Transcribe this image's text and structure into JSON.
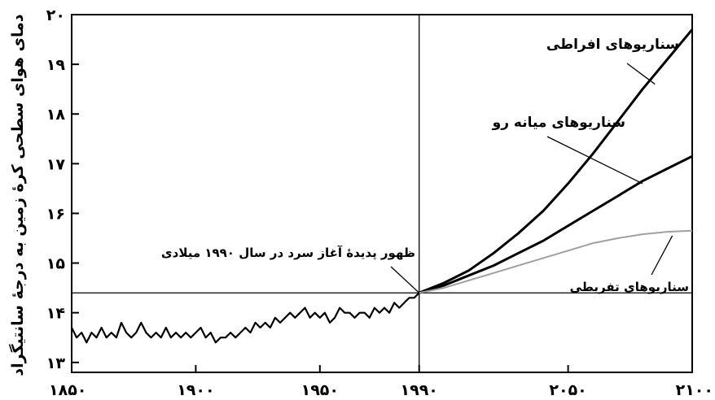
{
  "chart_data": {
    "type": "line",
    "title": "",
    "xlabel": "",
    "ylabel": "دمای هوای سطحی کرهٔ زمین به درجهٔ سانتیگراد",
    "xlim": [
      1850,
      2100
    ],
    "ylim": [
      12.8,
      20
    ],
    "x_ticks": [
      1850,
      1900,
      1950,
      1990,
      2050,
      2100
    ],
    "x_tick_labels": [
      "۱۸۵۰",
      "۱۹۰۰",
      "۱۹۵۰",
      "۱۹۹۰",
      "۲۰۵۰",
      "۲۱۰۰"
    ],
    "y_ticks": [
      13,
      14,
      15,
      16,
      17,
      18,
      19,
      20
    ],
    "y_tick_labels": [
      "۱۳",
      "۱۴",
      "۱۵",
      "۱۶",
      "۱۷",
      "۱۸",
      "۱۹",
      "۲۰"
    ],
    "reference_lines": {
      "vertical_x": 1990,
      "horizontal_y": 14.4
    },
    "series": [
      {
        "x": [
          1850,
          1852,
          1854,
          1856,
          1858,
          1860,
          1862,
          1864,
          1866,
          1868,
          1870,
          1872,
          1874,
          1876,
          1878,
          1880,
          1882,
          1884,
          1886,
          1888,
          1890,
          1892,
          1894,
          1896,
          1898,
          1900,
          1902,
          1904,
          1906,
          1908,
          1910,
          1912,
          1914,
          1916,
          1918,
          1920,
          1922,
          1924,
          1926,
          1928,
          1930,
          1932,
          1934,
          1936,
          1938,
          1940,
          1942,
          1944,
          1946,
          1948,
          1950,
          1952,
          1954,
          1956,
          1958,
          1960,
          1962,
          1964,
          1966,
          1968,
          1970,
          1972,
          1974,
          1976,
          1978,
          1980,
          1982,
          1984,
          1986,
          1988,
          1990
        ],
        "values": [
          13.7,
          13.5,
          13.6,
          13.4,
          13.6,
          13.5,
          13.7,
          13.5,
          13.6,
          13.5,
          13.8,
          13.6,
          13.5,
          13.6,
          13.8,
          13.6,
          13.5,
          13.6,
          13.5,
          13.7,
          13.5,
          13.6,
          13.5,
          13.6,
          13.5,
          13.6,
          13.7,
          13.5,
          13.6,
          13.4,
          13.5,
          13.5,
          13.6,
          13.5,
          13.6,
          13.7,
          13.6,
          13.8,
          13.7,
          13.8,
          13.7,
          13.9,
          13.8,
          13.9,
          14.0,
          13.9,
          14.0,
          14.1,
          13.9,
          14.0,
          13.9,
          14.0,
          13.8,
          13.9,
          14.1,
          14.0,
          14.0,
          13.9,
          14.0,
          14.0,
          13.9,
          14.1,
          14.0,
          14.1,
          14.0,
          14.2,
          14.1,
          14.2,
          14.3,
          14.3,
          14.4
        ]
      },
      {
        "name": "سناریوهای افراطی",
        "x": [
          1990,
          2000,
          2010,
          2020,
          2030,
          2040,
          2050,
          2060,
          2070,
          2080,
          2090,
          2100
        ],
        "values": [
          14.4,
          14.6,
          14.85,
          15.2,
          15.6,
          16.05,
          16.6,
          17.2,
          17.85,
          18.5,
          19.1,
          19.7
        ]
      },
      {
        "name": "سناریوهای میانه رو",
        "x": [
          1990,
          2000,
          2010,
          2020,
          2030,
          2040,
          2050,
          2060,
          2070,
          2080,
          2090,
          2100
        ],
        "values": [
          14.4,
          14.55,
          14.75,
          14.95,
          15.2,
          15.45,
          15.75,
          16.05,
          16.35,
          16.65,
          16.9,
          17.15
        ]
      },
      {
        "name": "سناریوهای تفریطی",
        "x": [
          1990,
          2000,
          2010,
          2020,
          2030,
          2040,
          2050,
          2060,
          2070,
          2080,
          2090,
          2100
        ],
        "values": [
          14.4,
          14.5,
          14.65,
          14.8,
          14.95,
          15.1,
          15.25,
          15.4,
          15.5,
          15.58,
          15.63,
          15.65
        ]
      }
    ],
    "annotations": {
      "extreme": "سناریوهای افراطی",
      "moderate": "سناریوهای میانه رو",
      "minimal": "سناریوهای تفریطی",
      "onset": "ظهور پدیدهٔ آغاز سرد در سال ۱۹۹۰ میلادی"
    },
    "colors": {
      "main": "#000000",
      "minimal": "#a0a0a0"
    },
    "grid": false,
    "legend": "none"
  }
}
